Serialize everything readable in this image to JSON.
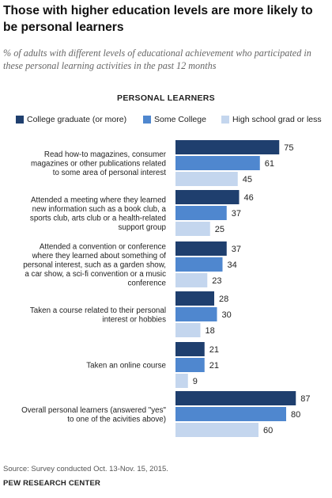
{
  "title": "Those with higher education levels are more likely to be personal learners",
  "subtitle": "% of adults with different levels of educational achievement who participated in these personal learning activities in the past 12 months",
  "source": "Source: Survey conducted Oct. 13-Nov. 15, 2015.",
  "org": "PEW RESEARCH CENTER",
  "colors": {
    "college_graduate": "#1f3f6e",
    "some_college": "#4f87cf",
    "high_school": "#c4d6ee"
  },
  "chart_data": {
    "type": "bar",
    "orientation": "horizontal",
    "title": "PERSONAL LEARNERS",
    "legend_position": "top",
    "grid": false,
    "xlim": [
      0,
      100
    ],
    "categories": [
      [
        "Read how-to magazines, consumer",
        "magazines or other publications related",
        "to some area of personal interest"
      ],
      [
        "Attended a meeting where they learned",
        "new information such as a book club, a",
        "sports club, arts club or a health-related",
        "support group"
      ],
      [
        "Attended a convention or conference",
        "where they learned about something of",
        "personal interest, such as a garden show,",
        "a car show, a sci-fi convention or a music",
        "conference"
      ],
      [
        "Taken a course related to their personal",
        "interest or hobbies"
      ],
      [
        "Taken an online course"
      ],
      [
        "Overall personal learners (answered \"yes\"",
        "to one of the acivities above)"
      ]
    ],
    "series": [
      {
        "name": "College graduate (or more)",
        "values": [
          75,
          46,
          37,
          28,
          21,
          87
        ]
      },
      {
        "name": "Some College",
        "values": [
          61,
          37,
          34,
          30,
          21,
          80
        ]
      },
      {
        "name": "High school grad or less",
        "values": [
          45,
          25,
          23,
          18,
          9,
          60
        ]
      }
    ]
  }
}
